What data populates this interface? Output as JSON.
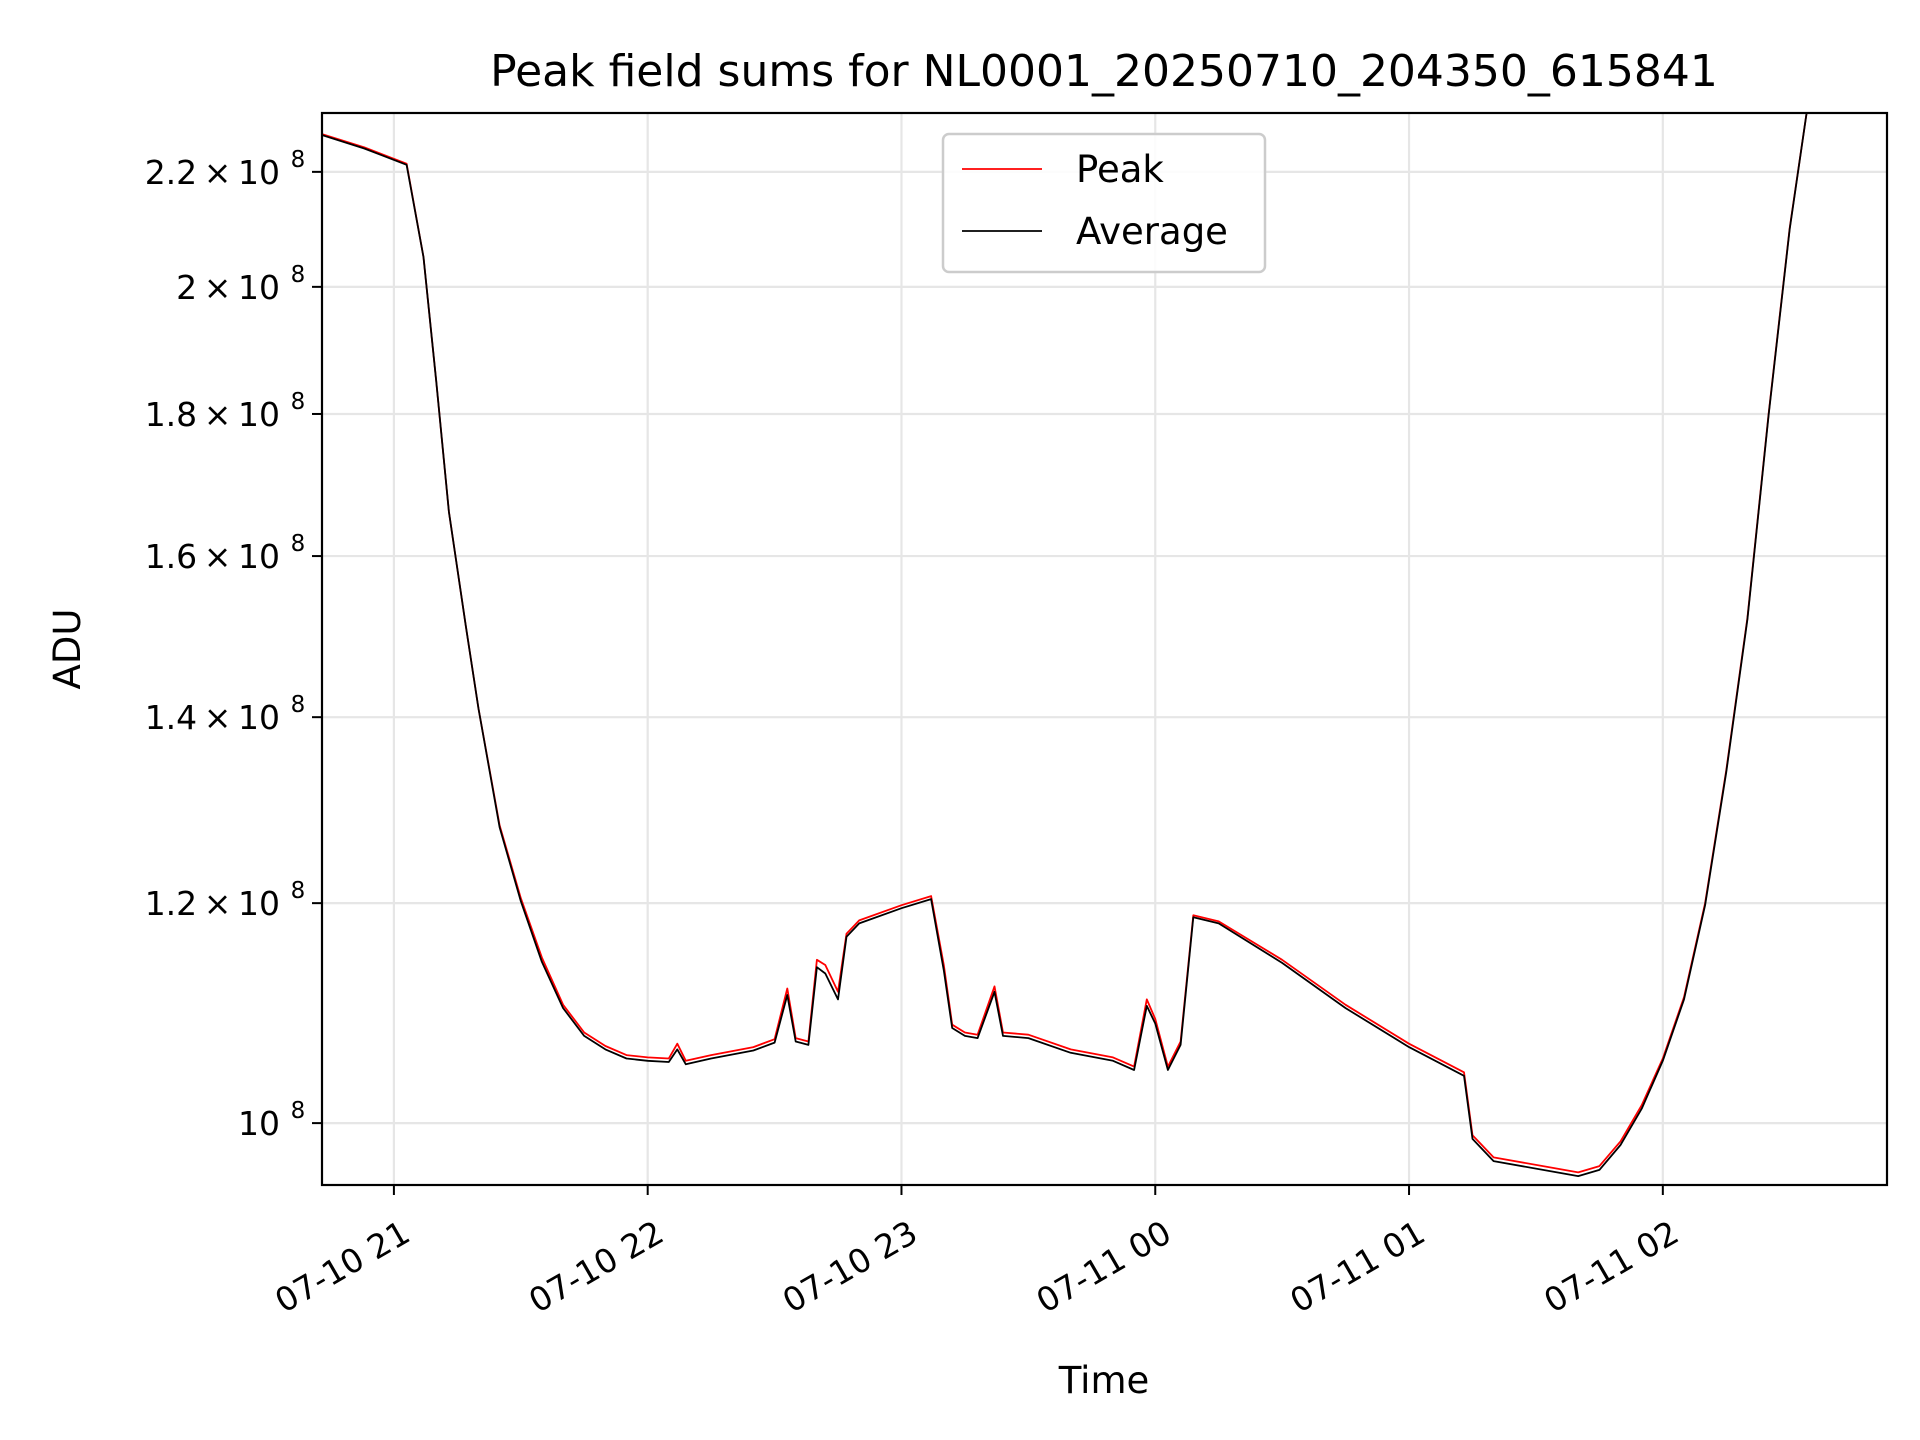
{
  "chart_data": {
    "type": "line",
    "title": "Peak field sums for NL0001_20250710_204350_615841",
    "xlabel": "Time",
    "ylabel": "ADU",
    "y_scale": "log",
    "grid": true,
    "legend_position": "top-center",
    "xlim": [
      "2025-07-10 20:43:00",
      "2025-07-11 02:53:00"
    ],
    "ylim": [
      95000000,
      231000000
    ],
    "x_ticks": [
      {
        "value": "2025-07-10 21:00",
        "label": "07-10 21"
      },
      {
        "value": "2025-07-10 22:00",
        "label": "07-10 22"
      },
      {
        "value": "2025-07-10 23:00",
        "label": "07-10 23"
      },
      {
        "value": "2025-07-11 00:00",
        "label": "07-11 00"
      },
      {
        "value": "2025-07-11 01:00",
        "label": "07-11 01"
      },
      {
        "value": "2025-07-11 02:00",
        "label": "07-11 02"
      }
    ],
    "y_ticks": [
      {
        "value": 100000000,
        "mantissa": "",
        "exp": "8"
      },
      {
        "value": 120000000,
        "mantissa": "1.2 × 10",
        "exp": "8"
      },
      {
        "value": 140000000,
        "mantissa": "1.4 × 10",
        "exp": "8"
      },
      {
        "value": 160000000,
        "mantissa": "1.6 × 10",
        "exp": "8"
      },
      {
        "value": 180000000,
        "mantissa": "1.8 × 10",
        "exp": "8"
      },
      {
        "value": 200000000,
        "mantissa": "2 × 10",
        "exp": "8"
      },
      {
        "value": 220000000,
        "mantissa": "2.2 × 10",
        "exp": "8"
      }
    ],
    "series": [
      {
        "name": "Peak",
        "color": "#ff0000",
        "points": [
          [
            "2025-07-10 20:43",
            227000000
          ],
          [
            "2025-07-10 20:53",
            224500000
          ],
          [
            "2025-07-10 21:03",
            221500000
          ],
          [
            "2025-07-10 21:07",
            205000000
          ],
          [
            "2025-07-10 21:10",
            185000000
          ],
          [
            "2025-07-10 21:13",
            166000000
          ],
          [
            "2025-07-10 21:17",
            151000000
          ],
          [
            "2025-07-10 21:20",
            141000000
          ],
          [
            "2025-07-10 21:25",
            128000000
          ],
          [
            "2025-07-10 21:30",
            120500000
          ],
          [
            "2025-07-10 21:35",
            114700000
          ],
          [
            "2025-07-10 21:40",
            110300000
          ],
          [
            "2025-07-10 21:45",
            107800000
          ],
          [
            "2025-07-10 21:50",
            106600000
          ],
          [
            "2025-07-10 21:55",
            105800000
          ],
          [
            "2025-07-10 22:00",
            105600000
          ],
          [
            "2025-07-10 22:05",
            105500000
          ],
          [
            "2025-07-10 22:07",
            106800000
          ],
          [
            "2025-07-10 22:09",
            105300000
          ],
          [
            "2025-07-10 22:15",
            105800000
          ],
          [
            "2025-07-10 22:25",
            106500000
          ],
          [
            "2025-07-10 22:30",
            107200000
          ],
          [
            "2025-07-10 22:33",
            111800000
          ],
          [
            "2025-07-10 22:35",
            107300000
          ],
          [
            "2025-07-10 22:38",
            107000000
          ],
          [
            "2025-07-10 22:40",
            114500000
          ],
          [
            "2025-07-10 22:42",
            114000000
          ],
          [
            "2025-07-10 22:45",
            111500000
          ],
          [
            "2025-07-10 22:47",
            117000000
          ],
          [
            "2025-07-10 22:50",
            118300000
          ],
          [
            "2025-07-10 23:00",
            119800000
          ],
          [
            "2025-07-10 23:07",
            120700000
          ],
          [
            "2025-07-10 23:10",
            114000000
          ],
          [
            "2025-07-10 23:12",
            108500000
          ],
          [
            "2025-07-10 23:15",
            107800000
          ],
          [
            "2025-07-10 23:18",
            107600000
          ],
          [
            "2025-07-10 23:22",
            112000000
          ],
          [
            "2025-07-10 23:24",
            107800000
          ],
          [
            "2025-07-10 23:30",
            107600000
          ],
          [
            "2025-07-10 23:40",
            106300000
          ],
          [
            "2025-07-10 23:50",
            105600000
          ],
          [
            "2025-07-10 23:55",
            104800000
          ],
          [
            "2025-07-10 23:58",
            110800000
          ],
          [
            "2025-07-11 00:00",
            109000000
          ],
          [
            "2025-07-11 00:03",
            104800000
          ],
          [
            "2025-07-11 00:06",
            107000000
          ],
          [
            "2025-07-11 00:09",
            118800000
          ],
          [
            "2025-07-11 00:15",
            118200000
          ],
          [
            "2025-07-11 00:30",
            114500000
          ],
          [
            "2025-07-11 00:45",
            110300000
          ],
          [
            "2025-07-11 01:00",
            106800000
          ],
          [
            "2025-07-11 01:13",
            104300000
          ],
          [
            "2025-07-11 01:15",
            99000000
          ],
          [
            "2025-07-11 01:20",
            97200000
          ],
          [
            "2025-07-11 01:35",
            96300000
          ],
          [
            "2025-07-11 01:40",
            96000000
          ],
          [
            "2025-07-11 01:45",
            96500000
          ],
          [
            "2025-07-11 01:50",
            98500000
          ],
          [
            "2025-07-11 01:55",
            101500000
          ],
          [
            "2025-07-11 02:00",
            105500000
          ],
          [
            "2025-07-11 02:05",
            111000000
          ],
          [
            "2025-07-11 02:10",
            120000000
          ],
          [
            "2025-07-11 02:15",
            134000000
          ],
          [
            "2025-07-11 02:20",
            152000000
          ],
          [
            "2025-07-11 02:25",
            180000000
          ],
          [
            "2025-07-11 02:30",
            210000000
          ],
          [
            "2025-07-11 02:34",
            231000000
          ]
        ]
      },
      {
        "name": "Average",
        "color": "#000000",
        "points": [
          [
            "2025-07-10 20:43",
            226800000
          ],
          [
            "2025-07-10 20:53",
            224300000
          ],
          [
            "2025-07-10 21:03",
            221300000
          ],
          [
            "2025-07-10 21:07",
            205000000
          ],
          [
            "2025-07-10 21:10",
            185000000
          ],
          [
            "2025-07-10 21:13",
            166000000
          ],
          [
            "2025-07-10 21:17",
            151000000
          ],
          [
            "2025-07-10 21:20",
            141000000
          ],
          [
            "2025-07-10 21:25",
            127800000
          ],
          [
            "2025-07-10 21:30",
            120200000
          ],
          [
            "2025-07-10 21:35",
            114300000
          ],
          [
            "2025-07-10 21:40",
            110000000
          ],
          [
            "2025-07-10 21:45",
            107500000
          ],
          [
            "2025-07-10 21:50",
            106300000
          ],
          [
            "2025-07-10 21:55",
            105500000
          ],
          [
            "2025-07-10 22:00",
            105300000
          ],
          [
            "2025-07-10 22:05",
            105200000
          ],
          [
            "2025-07-10 22:07",
            106300000
          ],
          [
            "2025-07-10 22:09",
            105000000
          ],
          [
            "2025-07-10 22:15",
            105500000
          ],
          [
            "2025-07-10 22:25",
            106200000
          ],
          [
            "2025-07-10 22:30",
            106900000
          ],
          [
            "2025-07-10 22:33",
            111200000
          ],
          [
            "2025-07-10 22:35",
            107000000
          ],
          [
            "2025-07-10 22:38",
            106700000
          ],
          [
            "2025-07-10 22:40",
            113800000
          ],
          [
            "2025-07-10 22:42",
            113200000
          ],
          [
            "2025-07-10 22:45",
            110800000
          ],
          [
            "2025-07-10 22:47",
            116700000
          ],
          [
            "2025-07-10 22:50",
            118000000
          ],
          [
            "2025-07-10 23:00",
            119500000
          ],
          [
            "2025-07-10 23:07",
            120400000
          ],
          [
            "2025-07-10 23:10",
            113500000
          ],
          [
            "2025-07-10 23:12",
            108200000
          ],
          [
            "2025-07-10 23:15",
            107500000
          ],
          [
            "2025-07-10 23:18",
            107300000
          ],
          [
            "2025-07-10 23:22",
            111500000
          ],
          [
            "2025-07-10 23:24",
            107500000
          ],
          [
            "2025-07-10 23:30",
            107300000
          ],
          [
            "2025-07-10 23:40",
            106000000
          ],
          [
            "2025-07-10 23:50",
            105300000
          ],
          [
            "2025-07-10 23:55",
            104500000
          ],
          [
            "2025-07-10 23:58",
            110200000
          ],
          [
            "2025-07-11 00:00",
            108600000
          ],
          [
            "2025-07-11 00:03",
            104500000
          ],
          [
            "2025-07-11 00:06",
            106700000
          ],
          [
            "2025-07-11 00:09",
            118600000
          ],
          [
            "2025-07-11 00:15",
            118000000
          ],
          [
            "2025-07-11 00:30",
            114200000
          ],
          [
            "2025-07-11 00:45",
            110000000
          ],
          [
            "2025-07-11 01:00",
            106500000
          ],
          [
            "2025-07-11 01:13",
            104000000
          ],
          [
            "2025-07-11 01:15",
            98700000
          ],
          [
            "2025-07-11 01:20",
            96900000
          ],
          [
            "2025-07-11 01:35",
            96000000
          ],
          [
            "2025-07-11 01:40",
            95700000
          ],
          [
            "2025-07-11 01:45",
            96200000
          ],
          [
            "2025-07-11 01:50",
            98200000
          ],
          [
            "2025-07-11 01:55",
            101200000
          ],
          [
            "2025-07-11 02:00",
            105300000
          ],
          [
            "2025-07-11 02:05",
            110800000
          ],
          [
            "2025-07-11 02:10",
            119800000
          ],
          [
            "2025-07-11 02:15",
            133800000
          ],
          [
            "2025-07-11 02:20",
            151800000
          ],
          [
            "2025-07-11 02:25",
            179800000
          ],
          [
            "2025-07-11 02:30",
            209800000
          ],
          [
            "2025-07-11 02:34",
            231000000
          ]
        ]
      }
    ]
  }
}
